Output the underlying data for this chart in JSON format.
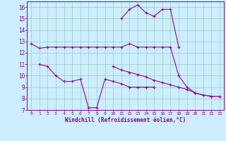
{
  "background_color": "#cceeff",
  "grid_color": "#99ccbb",
  "line_color": "#990099",
  "xlabel": "Windchill (Refroidissement éolien,°C)",
  "xlim": [
    -0.5,
    23.5
  ],
  "ylim": [
    7,
    16.5
  ],
  "xticks": [
    0,
    1,
    2,
    3,
    4,
    5,
    6,
    7,
    8,
    9,
    10,
    11,
    12,
    13,
    14,
    15,
    16,
    17,
    18,
    19,
    20,
    21,
    22,
    23
  ],
  "yticks": [
    7,
    8,
    9,
    10,
    11,
    12,
    13,
    14,
    15,
    16
  ],
  "x_all": [
    0,
    1,
    2,
    3,
    4,
    5,
    6,
    7,
    8,
    9,
    10,
    11,
    12,
    13,
    14,
    15,
    16,
    17,
    18,
    19,
    20,
    21,
    22,
    23
  ],
  "line1_y": [
    12.8,
    12.4,
    12.5,
    12.5,
    12.5,
    12.5,
    12.5,
    12.5,
    12.5,
    12.5,
    12.5,
    12.5,
    12.8,
    12.5,
    12.5,
    12.5,
    12.5,
    12.5,
    10.0,
    9.0,
    8.5,
    8.3,
    8.2,
    8.2
  ],
  "line2_y": [
    null,
    null,
    null,
    null,
    null,
    null,
    null,
    null,
    null,
    null,
    10.8,
    10.5,
    10.3,
    10.1,
    9.9,
    9.6,
    9.4,
    9.2,
    9.0,
    8.8,
    8.5,
    8.3,
    8.2,
    8.2
  ],
  "line3_y": [
    null,
    11.0,
    10.8,
    10.0,
    9.5,
    9.5,
    9.7,
    7.2,
    7.2,
    9.7,
    9.5,
    9.3,
    9.0,
    9.0,
    9.0,
    9.0,
    null,
    null,
    null,
    null,
    null,
    null,
    null,
    null
  ],
  "line4_y": [
    null,
    null,
    null,
    null,
    null,
    null,
    null,
    null,
    null,
    null,
    null,
    15.0,
    15.8,
    16.2,
    15.5,
    15.2,
    15.8,
    15.8,
    12.5,
    null,
    null,
    null,
    null,
    null
  ]
}
